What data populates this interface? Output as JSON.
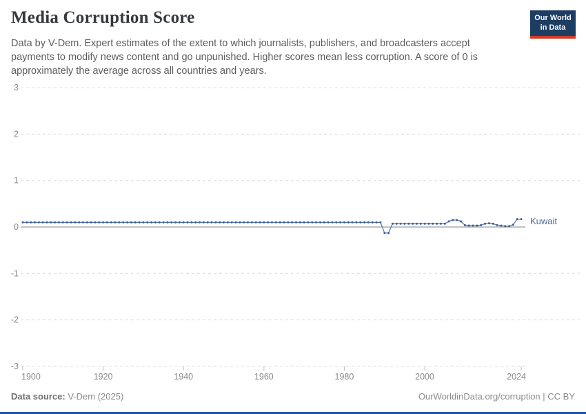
{
  "header": {
    "title": "Media Corruption Score",
    "subtitle": "Data by V-Dem. Expert estimates of the extent to which journalists, publishers, and broadcasters accept payments to modify news content and go unpunished. Higher scores mean less corruption. A score of 0 is approximately the average across all countries and years."
  },
  "logo": {
    "line1": "Our World",
    "line2": "in Data",
    "bg_color": "#1d3d63",
    "accent_color": "#d13b27"
  },
  "page": {
    "bottom_bar_color": "#2457a5",
    "grid_color": "#dcdcdc",
    "zero_line_color": "#9c9c9c",
    "tick_label_color": "#8a8a8a"
  },
  "chart_data": {
    "type": "line",
    "title": "Media Corruption Score",
    "xlabel": "",
    "ylabel": "",
    "xlim": [
      1900,
      2024
    ],
    "ylim": [
      -3,
      3
    ],
    "x_ticks": [
      1900,
      1920,
      1940,
      1960,
      1980,
      2000,
      2024
    ],
    "y_ticks": [
      3,
      2,
      1,
      0,
      -1,
      -2,
      -3
    ],
    "grid": "dashed horizontal gridlines, solid zero line",
    "legend_position": "label at end of line",
    "series": [
      {
        "name": "Kuwait",
        "color": "#4c6a9c",
        "line_color": "#587ab0",
        "marker_color": "#3c5c9a",
        "start_year": 1900,
        "end_year": 2024,
        "values": [
          0.1,
          0.1,
          0.1,
          0.1,
          0.1,
          0.1,
          0.1,
          0.1,
          0.1,
          0.1,
          0.1,
          0.1,
          0.1,
          0.1,
          0.1,
          0.1,
          0.1,
          0.1,
          0.1,
          0.1,
          0.1,
          0.1,
          0.1,
          0.1,
          0.1,
          0.1,
          0.1,
          0.1,
          0.1,
          0.1,
          0.1,
          0.1,
          0.1,
          0.1,
          0.1,
          0.1,
          0.1,
          0.1,
          0.1,
          0.1,
          0.1,
          0.1,
          0.1,
          0.1,
          0.1,
          0.1,
          0.1,
          0.1,
          0.1,
          0.1,
          0.1,
          0.1,
          0.1,
          0.1,
          0.1,
          0.1,
          0.1,
          0.1,
          0.1,
          0.1,
          0.1,
          0.1,
          0.1,
          0.1,
          0.1,
          0.1,
          0.1,
          0.1,
          0.1,
          0.1,
          0.1,
          0.1,
          0.1,
          0.1,
          0.1,
          0.1,
          0.1,
          0.1,
          0.1,
          0.1,
          0.1,
          0.1,
          0.1,
          0.1,
          0.1,
          0.1,
          0.1,
          0.1,
          0.1,
          0.1,
          -0.13,
          -0.13,
          0.07,
          0.07,
          0.07,
          0.07,
          0.07,
          0.07,
          0.07,
          0.07,
          0.07,
          0.07,
          0.07,
          0.07,
          0.07,
          0.07,
          0.12,
          0.15,
          0.15,
          0.12,
          0.04,
          0.03,
          0.03,
          0.03,
          0.04,
          0.07,
          0.08,
          0.07,
          0.04,
          0.03,
          0.02,
          0.02,
          0.05,
          0.17,
          0.17
        ]
      }
    ]
  },
  "footer": {
    "source_label": "Data source:",
    "source_value": "V-Dem (2025)",
    "right_text": "OurWorldinData.org/corruption | CC BY"
  }
}
